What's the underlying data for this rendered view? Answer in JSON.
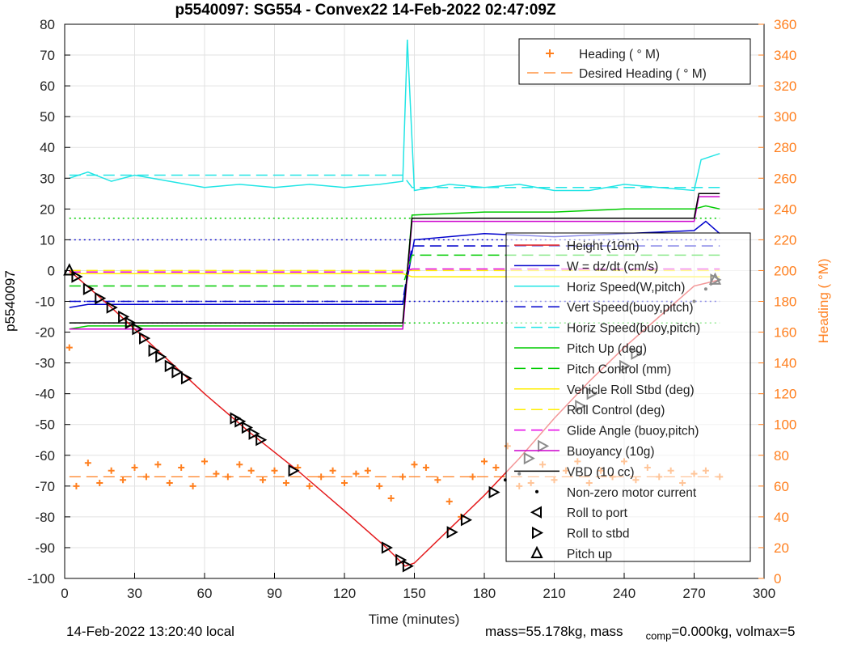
{
  "chart_data": {
    "type": "line",
    "title": "p5540097: SG554 - Convex22 14-Feb-2022 02:47:09Z",
    "xlabel": "Time (minutes)",
    "ylabel": "p5540097",
    "ylabel_right": "Heading (  °M)",
    "xlim": [
      0,
      300
    ],
    "ylim": [
      -100,
      80
    ],
    "ylim_right": [
      0,
      360
    ],
    "x_ticks": [
      "0",
      "30",
      "60",
      "90",
      "120",
      "150",
      "180",
      "210",
      "240",
      "270",
      "300"
    ],
    "y_ticks": [
      "80",
      "70",
      "60",
      "50",
      "40",
      "30",
      "20",
      "10",
      "0",
      "-10",
      "-20",
      "-30",
      "-40",
      "-50",
      "-60",
      "-70",
      "-80",
      "-90",
      "-100"
    ],
    "y_ticks_right": [
      "360",
      "340",
      "320",
      "300",
      "280",
      "260",
      "240",
      "220",
      "200",
      "180",
      "160",
      "140",
      "120",
      "100",
      "80",
      "60",
      "40",
      "20",
      "0"
    ],
    "grid": true,
    "colors": {
      "height": "#e41a1c",
      "w": "#0000cc",
      "horiz_w": "#22e5e5",
      "vert_buoy": "#0000cc",
      "horiz_buoy": "#22e5e5",
      "pitch_up": "#00cc00",
      "pitch_control": "#00cc00",
      "roll": "#ffee00",
      "roll_control": "#ffee00",
      "glide": "#e600e6",
      "buoyancy": "#cc00cc",
      "vbd": "#000000",
      "heading": "#ff7f1e"
    },
    "height": {
      "name": "Height (10m)",
      "x": [
        2,
        20,
        40,
        60,
        80,
        100,
        120,
        138,
        146,
        150,
        165,
        180,
        195,
        210,
        225,
        240,
        255,
        270,
        281
      ],
      "y": [
        0,
        -12,
        -26,
        -40,
        -53,
        -65,
        -78,
        -90,
        -96,
        -95,
        -84,
        -73,
        -61,
        -48,
        -36,
        -25,
        -15,
        -5,
        -3
      ]
    },
    "series": [
      {
        "name": "W = dz/dt (cm/s)",
        "key": "w",
        "style": "solid",
        "x": [
          2,
          10,
          30,
          60,
          90,
          120,
          145,
          150,
          180,
          210,
          240,
          270,
          275,
          281
        ],
        "y": [
          -12,
          -11,
          -11,
          -11,
          -11,
          -11,
          -11,
          10,
          12,
          11,
          12,
          13,
          16,
          12
        ]
      },
      {
        "name": "Horiz Speed(W,pitch)",
        "key": "horiz_w",
        "style": "solid",
        "x": [
          2,
          10,
          20,
          30,
          45,
          60,
          75,
          90,
          105,
          120,
          135,
          145,
          147,
          150,
          165,
          180,
          195,
          210,
          225,
          240,
          255,
          270,
          273,
          281
        ],
        "y": [
          30,
          32,
          29,
          31,
          29,
          27,
          28,
          27,
          28,
          27,
          28,
          29,
          75,
          26,
          28,
          27,
          28,
          26,
          26,
          28,
          27,
          26,
          36,
          38
        ]
      },
      {
        "name": "Vert Speed(buoy,pitch)",
        "key": "vert_buoy",
        "style": "dashed",
        "x": [
          2,
          145,
          149,
          281
        ],
        "y": [
          -10,
          -10,
          8,
          8
        ]
      },
      {
        "name": "Horiz Speed(buoy,pitch)",
        "key": "horiz_buoy",
        "style": "dashed",
        "x": [
          2,
          145,
          149,
          281
        ],
        "y": [
          31,
          31,
          27,
          27
        ]
      },
      {
        "name": "Pitch Up (deg)",
        "key": "pitch_up",
        "style": "solid",
        "x": [
          2,
          10,
          30,
          60,
          90,
          120,
          145,
          149,
          180,
          210,
          240,
          270,
          275,
          281
        ],
        "y": [
          -19,
          -18,
          -18,
          -18,
          -18,
          -18,
          -18,
          18,
          19,
          19,
          20,
          20,
          21,
          20
        ]
      },
      {
        "name": "Pitch Control (mm)",
        "key": "pitch_control",
        "style": "dashed",
        "x": [
          2,
          145,
          149,
          281
        ],
        "y": [
          -5,
          -5,
          5,
          5
        ]
      },
      {
        "name": "Vehicle Roll Stbd (deg)",
        "key": "roll",
        "style": "solid",
        "x": [
          2,
          145,
          149,
          281
        ],
        "y": [
          -1,
          -1,
          -2,
          -2
        ]
      },
      {
        "name": "Roll Control (deg)",
        "key": "roll_control",
        "style": "dashed",
        "x": [
          2,
          281
        ],
        "y": [
          0,
          0
        ]
      },
      {
        "name": "Glide Angle (buoy,pitch)",
        "key": "glide",
        "style": "dashed",
        "x": [
          2,
          145,
          149,
          281
        ],
        "y": [
          -0.5,
          -0.5,
          0.5,
          0.5
        ]
      },
      {
        "name": "Buoyancy (10g)",
        "key": "buoyancy",
        "style": "solid",
        "x": [
          2,
          145,
          149,
          270,
          272,
          281
        ],
        "y": [
          -19,
          -19,
          16,
          16,
          24,
          24
        ]
      },
      {
        "name": "VBD (10 cc)",
        "key": "vbd",
        "style": "solid",
        "x": [
          2,
          145,
          149,
          270,
          272,
          281
        ],
        "y": [
          -17,
          -17,
          17,
          17,
          25,
          25
        ]
      }
    ],
    "reference_lines": [
      {
        "key": "w",
        "y": 10,
        "style": "dotted"
      },
      {
        "key": "w",
        "y": -10,
        "style": "dotted"
      },
      {
        "key": "pitch_up",
        "y": 17,
        "style": "dotted"
      },
      {
        "key": "pitch_up",
        "y": -17,
        "style": "dotted"
      }
    ],
    "heading": {
      "name": "Heading (  ° M)",
      "x": [
        2,
        5,
        10,
        15,
        20,
        25,
        30,
        35,
        40,
        45,
        50,
        55,
        60,
        65,
        70,
        75,
        80,
        85,
        90,
        95,
        100,
        105,
        110,
        115,
        120,
        125,
        130,
        135,
        140,
        145,
        150,
        155,
        160,
        165,
        170,
        175,
        180,
        185,
        190,
        195,
        200,
        205,
        210,
        215,
        220,
        225,
        230,
        235,
        240,
        245,
        250,
        255,
        260,
        265,
        270,
        275,
        281
      ],
      "y_right": [
        150,
        60,
        75,
        62,
        70,
        64,
        72,
        66,
        74,
        62,
        72,
        60,
        76,
        68,
        66,
        74,
        70,
        64,
        70,
        62,
        72,
        60,
        66,
        70,
        62,
        68,
        70,
        60,
        52,
        66,
        74,
        72,
        64,
        50,
        40,
        66,
        76,
        72,
        86,
        60,
        62,
        74,
        64,
        70,
        76,
        62,
        70,
        66,
        76,
        64,
        72,
        66,
        70,
        62,
        68,
        70,
        66
      ]
    },
    "desired_heading": {
      "name": "Desired Heading (  ° M)",
      "x": [
        2,
        281
      ],
      "y_right": [
        66,
        66
      ]
    },
    "roll_to_port": {
      "name": "Roll to port",
      "x": [],
      "y": []
    },
    "roll_to_stbd": {
      "name": "Roll to stbd",
      "x": [
        5,
        10,
        15,
        20,
        25,
        28,
        31,
        34,
        38,
        41,
        45,
        48,
        52,
        73,
        75,
        78,
        81,
        84,
        98,
        138,
        144,
        147,
        166,
        172,
        184,
        199,
        205,
        221,
        226,
        240,
        245,
        279
      ],
      "y": [
        -2,
        -6,
        -9,
        -12,
        -15,
        -17,
        -19,
        -22,
        -26,
        -28,
        -31,
        -33,
        -35,
        -48,
        -49,
        -51,
        -53,
        -55,
        -65,
        -90,
        -94,
        -96,
        -85,
        -81,
        -72,
        -61,
        -57,
        -44,
        -40,
        -31,
        -27,
        -3
      ]
    },
    "pitch_up_marker": {
      "name": "Pitch up",
      "x": [
        2,
        279
      ],
      "y": [
        0,
        -3
      ]
    },
    "motor": {
      "name": "Non-zero motor current",
      "x": [
        189,
        195,
        270,
        275
      ],
      "y": [
        -68,
        -66,
        -10,
        -6
      ]
    },
    "legend_top": [
      "Heading (  ° M)",
      "Desired Heading (  ° M)"
    ],
    "legend_main": [
      "Height (10m)",
      "W = dz/dt (cm/s)",
      "Horiz Speed(W,pitch)",
      "Vert Speed(buoy,pitch)",
      "Horiz Speed(buoy,pitch)",
      "Pitch Up (deg)",
      "Pitch Control (mm)",
      "Vehicle Roll Stbd (deg)",
      "Roll Control (deg)",
      "Glide Angle (buoy,pitch)",
      "Buoyancy (10g)",
      "VBD (10 cc)",
      "Non-zero motor current",
      "Roll to port",
      "Roll to stbd",
      "Pitch up"
    ],
    "legend_placement": [
      "top-right",
      "right"
    ]
  },
  "footer": {
    "local_time": "14-Feb-2022 13:20:40 local",
    "mass_text": "mass=55.178kg, mass",
    "comp_sub": "comp",
    "comp_text": "=0.000kg, volmax=5"
  }
}
